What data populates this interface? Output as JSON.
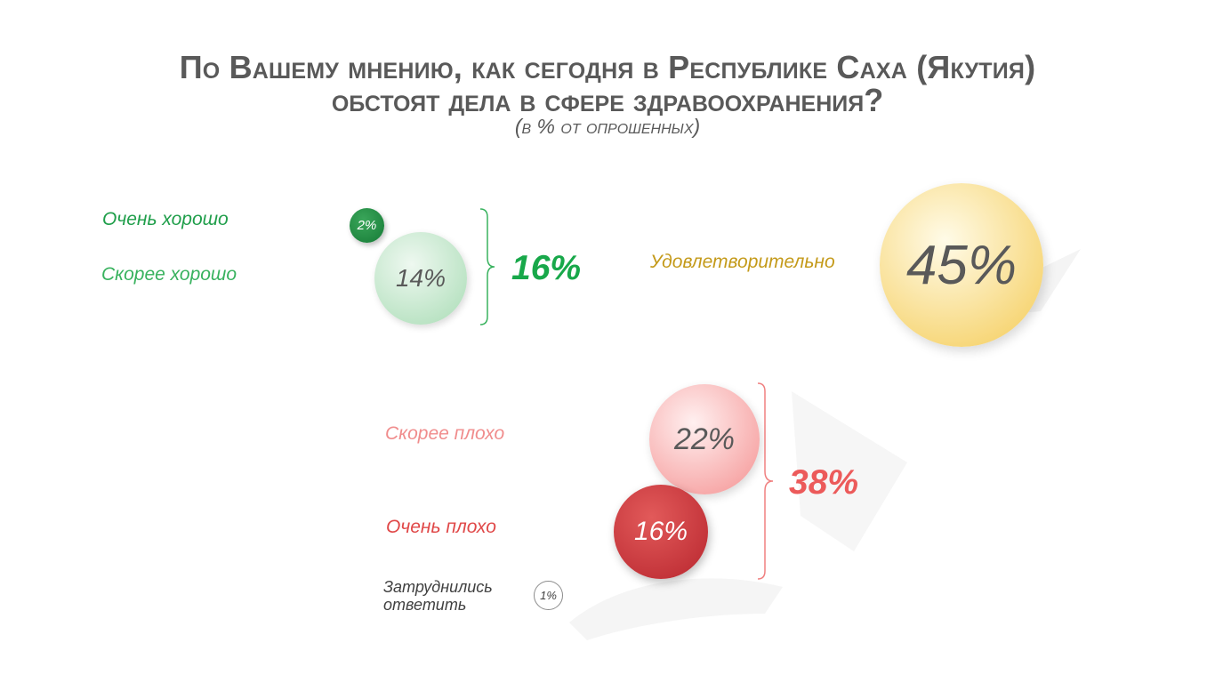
{
  "title_line1": "По Вашему мнению, как сегодня в Республике Саха (Якутия)",
  "title_line2": "обстоят дела в сфере здравоохранения?",
  "subtitle": "(в % от опрошенных)",
  "colors": {
    "good": "#1f9e4a",
    "good_light": "#38b25e",
    "satisfactory": "#c49a1a",
    "bad_light": "#f08080",
    "bad": "#e04848",
    "neutral": "#404040"
  },
  "chart_data": {
    "type": "bubble",
    "title": "По Вашему мнению, как сегодня в Республике Саха (Якутия) обстоят дела в сфере здравоохранения?",
    "subtitle": "(в % от опрошенных)",
    "categories": [
      "Очень хорошо",
      "Скорее хорошо",
      "Удовлетворительно",
      "Скорее плохо",
      "Очень плохо",
      "Затруднились ответить"
    ],
    "values": [
      2,
      14,
      45,
      22,
      16,
      1
    ],
    "value_labels": [
      "2%",
      "14%",
      "45%",
      "22%",
      "16%",
      "1%"
    ],
    "groups": [
      {
        "members": [
          "Очень хорошо",
          "Скорее хорошо"
        ],
        "total": 16,
        "total_label": "16%"
      },
      {
        "members": [
          "Скорее плохо",
          "Очень плохо"
        ],
        "total": 38,
        "total_label": "38%"
      }
    ]
  },
  "labels": {
    "very_good": "Очень хорошо",
    "rather_good": "Скорее хорошо",
    "satisfactory": "Удовлетворительно",
    "rather_bad": "Скорее плохо",
    "very_bad": "Очень плохо",
    "hard_line1": "Затруднились",
    "hard_line2": "ответить"
  },
  "values": {
    "very_good": "2%",
    "rather_good": "14%",
    "satisfactory": "45%",
    "rather_bad": "22%",
    "very_bad": "16%",
    "hard": "1%"
  },
  "totals": {
    "good": "16%",
    "bad": "38%"
  }
}
